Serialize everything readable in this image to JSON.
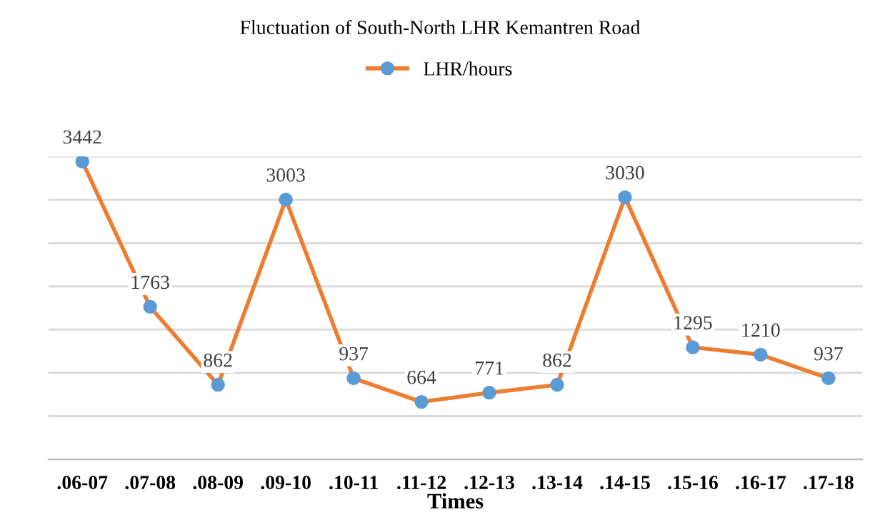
{
  "chart_data": {
    "type": "line",
    "title": "Fluctuation of South-North LHR Kemantren Road",
    "xlabel": "Times",
    "categories": [
      ".06-07",
      ".07-08",
      ".08-09",
      ".09-10",
      ".10-11",
      ".11-12",
      ".12-13",
      ".13-14",
      ".14-15",
      ".15-16",
      ".16-17",
      ".17-18"
    ],
    "series": [
      {
        "name": "LHR/hours",
        "color": "#ed7d31",
        "values": [
          3442,
          1763,
          862,
          3003,
          937,
          664,
          771,
          862,
          3030,
          1295,
          1210,
          937
        ]
      }
    ],
    "ylim": [
      0,
      3500
    ],
    "yticks": [
      {
        "value": 0,
        "label": null
      },
      {
        "value": 500,
        "label": null
      },
      {
        "value": 1000,
        "label": null
      },
      {
        "value": 1500,
        "label": null
      },
      {
        "value": 2000,
        "label": null
      },
      {
        "value": 2500,
        "label": null
      },
      {
        "value": 3000,
        "label": null
      },
      {
        "value": 3500,
        "label": null
      }
    ],
    "tick_labels": "x",
    "grid": "y",
    "legend": "top",
    "marker": "circle",
    "line_style": "solid",
    "data_labels": true
  }
}
